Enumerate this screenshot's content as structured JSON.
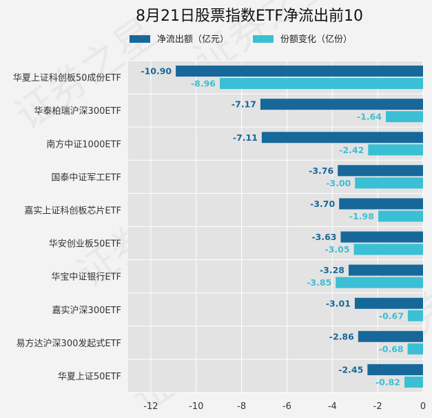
{
  "chart_data": {
    "type": "bar",
    "orientation": "horizontal",
    "title": "8月21日股票指数ETF净流出前10",
    "categories": [
      "华夏上证科创板50成份ETF",
      "华泰柏瑞沪深300ETF",
      "南方中证1000ETF",
      "国泰中证军工ETF",
      "嘉实上证科创板芯片ETF",
      "华安创业板50ETF",
      "华宝中证银行ETF",
      "嘉实沪深300ETF",
      "易方达沪深300发起式ETF",
      "华夏上证50ETF"
    ],
    "series": [
      {
        "name": "净流出额（亿元）",
        "color": "#17689a",
        "values": [
          -10.9,
          -7.17,
          -7.11,
          -3.76,
          -3.7,
          -3.63,
          -3.28,
          -3.01,
          -2.86,
          -2.45
        ],
        "labels": [
          "-10.90",
          "-7.17",
          "-7.11",
          "-3.76",
          "-3.70",
          "-3.63",
          "-3.28",
          "-3.01",
          "-2.86",
          "-2.45"
        ]
      },
      {
        "name": "份额变化（亿份）",
        "color": "#3bbfd4",
        "values": [
          -8.96,
          -1.64,
          -2.42,
          -3.0,
          -1.98,
          -3.05,
          -3.85,
          -0.67,
          -0.68,
          -0.82
        ],
        "labels": [
          "-8.96",
          "-1.64",
          "-2.42",
          "-3.00",
          "-1.98",
          "-3.05",
          "-3.85",
          "-0.67",
          "-0.68",
          "-0.82"
        ]
      }
    ],
    "xlim": [
      -13,
      0
    ],
    "xticks": [
      -12,
      -10,
      -8,
      -6,
      -4,
      -2,
      0
    ],
    "xtick_labels": [
      "-12",
      "-10",
      "-8",
      "-6",
      "-4",
      "-2",
      "0"
    ],
    "grid": true,
    "legend_position": "top"
  },
  "colors": {
    "background": "#f3f3f3",
    "plot_background": "#e3e3e3",
    "grid": "#ffffff"
  },
  "watermark": "证券之星"
}
